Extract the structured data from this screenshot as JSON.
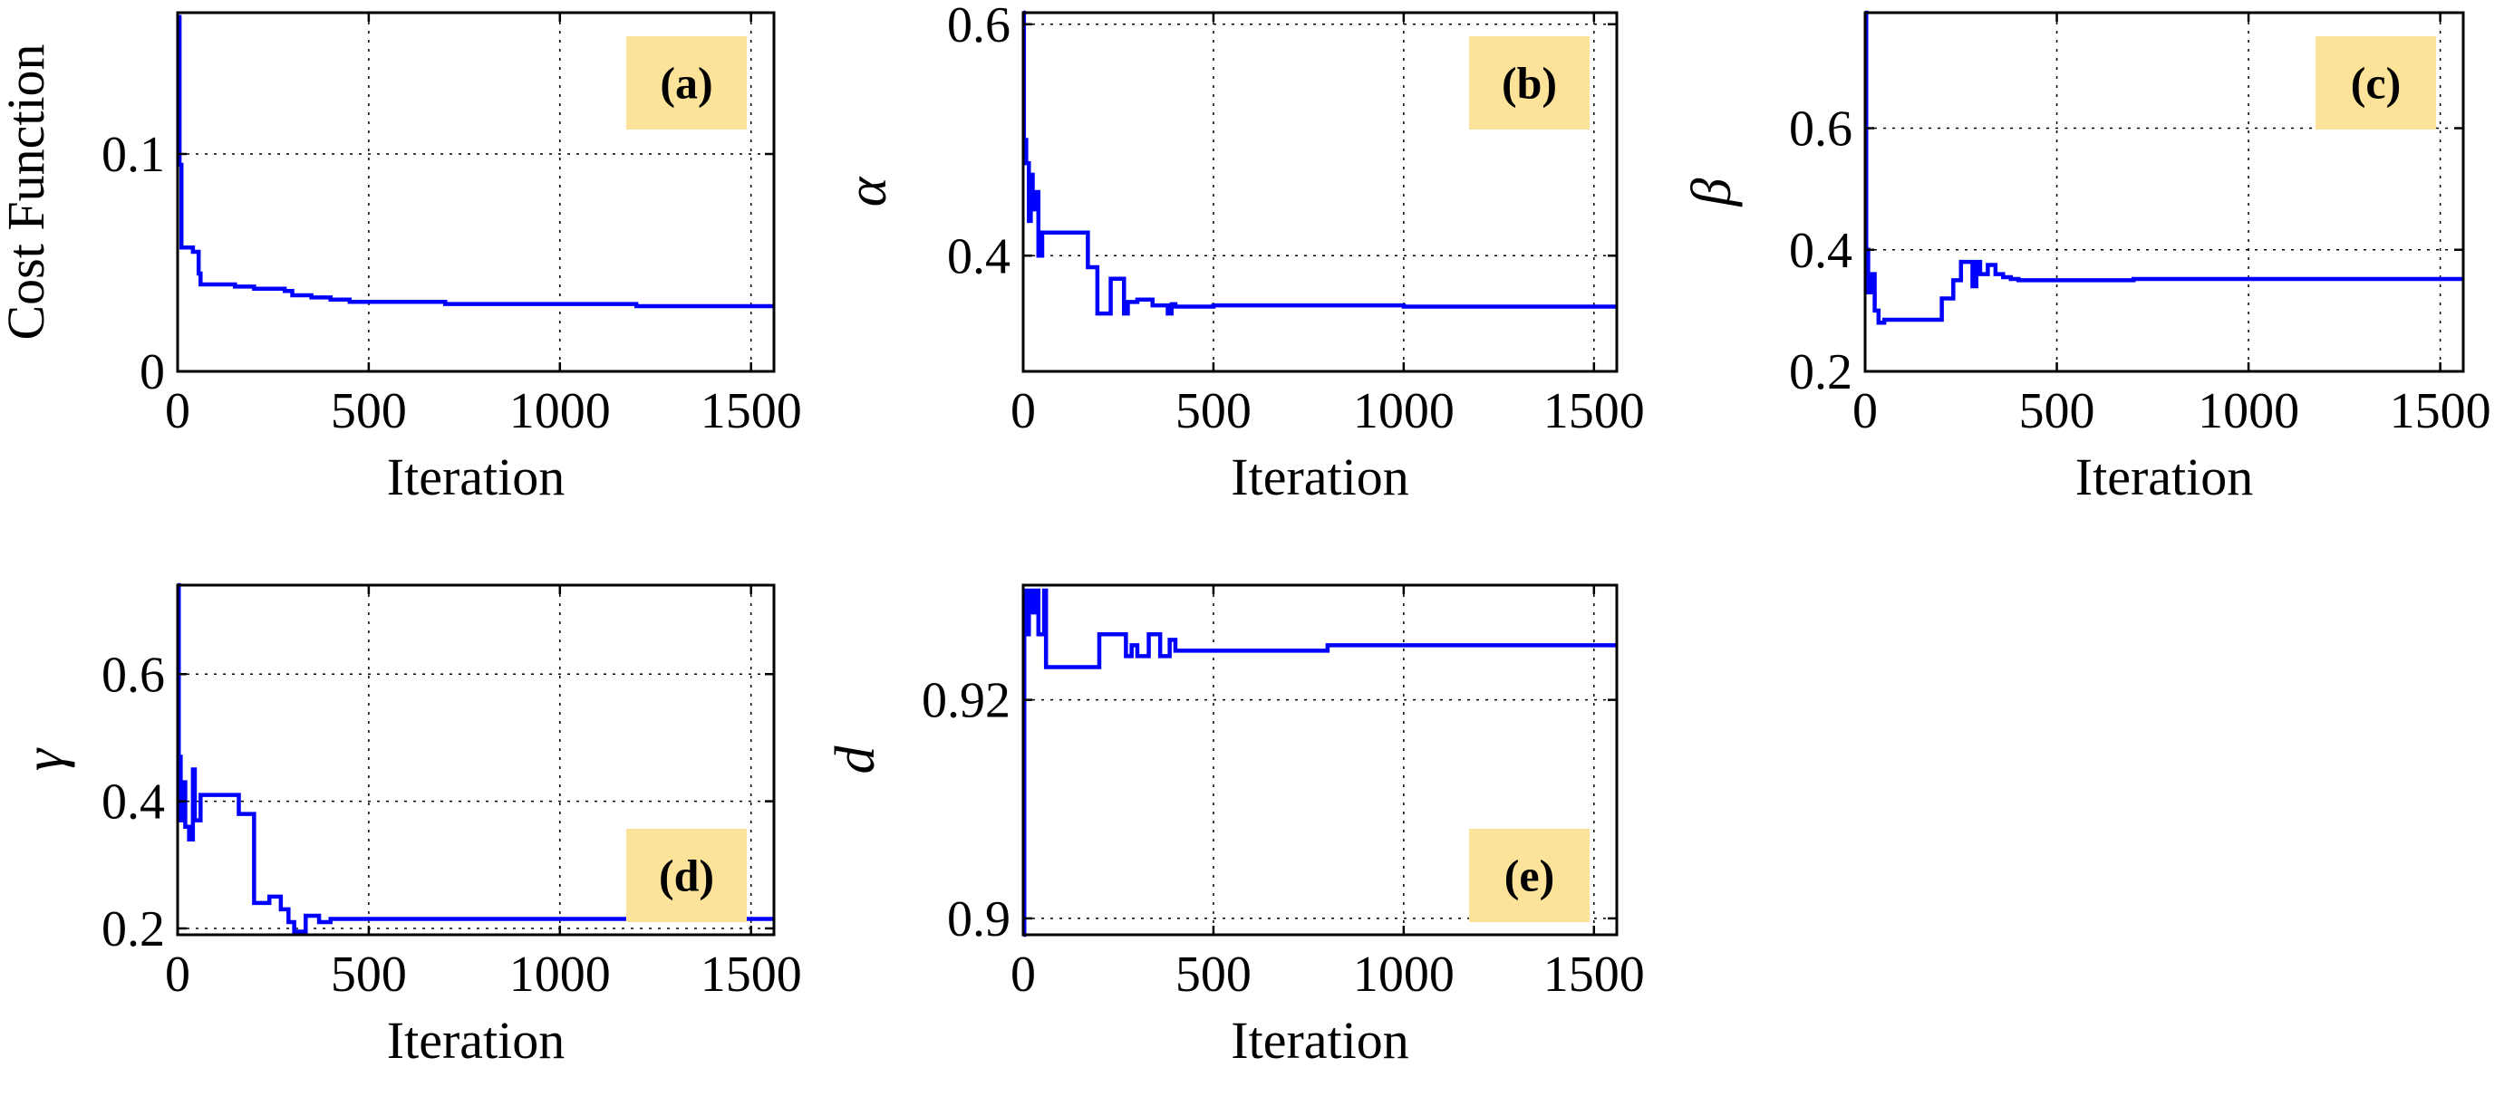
{
  "colors": {
    "series": "#0000ff",
    "label_box": "#fde39a",
    "axes": "#000000"
  },
  "chart_data": [
    {
      "type": "line",
      "panel": "(a)",
      "title": "",
      "xlabel": "Iteration",
      "ylabel": "Cost Function",
      "xlim": [
        0,
        1560
      ],
      "ylim": [
        0,
        0.165
      ],
      "xticks": [
        0,
        500,
        1000,
        1500
      ],
      "xtick_labels": [
        "0",
        "500",
        "1000",
        "1500"
      ],
      "yticks": [
        0,
        0.1
      ],
      "ytick_labels": [
        "0",
        "0.1"
      ],
      "grid": true,
      "label_position": "top-right",
      "series": [
        {
          "name": "Cost Function",
          "step": true,
          "x": [
            0,
            5,
            10,
            40,
            55,
            60,
            150,
            200,
            280,
            300,
            350,
            400,
            450,
            550,
            700,
            800,
            1000,
            1200,
            1560
          ],
          "y": [
            0.163,
            0.095,
            0.057,
            0.055,
            0.045,
            0.04,
            0.039,
            0.038,
            0.037,
            0.035,
            0.034,
            0.033,
            0.032,
            0.032,
            0.031,
            0.031,
            0.031,
            0.03,
            0.03
          ]
        }
      ]
    },
    {
      "type": "line",
      "panel": "(b)",
      "title": "",
      "xlabel": "Iteration",
      "ylabel": "α",
      "xlim": [
        0,
        1560
      ],
      "ylim": [
        0.3,
        0.61
      ],
      "xticks": [
        0,
        500,
        1000,
        1500
      ],
      "xtick_labels": [
        "0",
        "500",
        "1000",
        "1500"
      ],
      "yticks": [
        0.4,
        0.6
      ],
      "ytick_labels": [
        "0.4",
        "0.6"
      ],
      "grid": true,
      "label_position": "top-right",
      "series": [
        {
          "name": "α",
          "step": true,
          "x": [
            0,
            2,
            8,
            15,
            20,
            25,
            30,
            40,
            50,
            70,
            170,
            195,
            230,
            265,
            275,
            300,
            340,
            380,
            390,
            400,
            500,
            1000,
            1560
          ],
          "y": [
            0.61,
            0.5,
            0.48,
            0.43,
            0.47,
            0.44,
            0.455,
            0.4,
            0.42,
            0.42,
            0.39,
            0.35,
            0.38,
            0.35,
            0.36,
            0.362,
            0.357,
            0.35,
            0.358,
            0.356,
            0.357,
            0.356,
            0.356
          ]
        }
      ]
    },
    {
      "type": "line",
      "panel": "(c)",
      "title": "",
      "xlabel": "Iteration",
      "ylabel": "β",
      "xlim": [
        0,
        1560
      ],
      "ylim": [
        0.2,
        0.79
      ],
      "xticks": [
        0,
        500,
        1000,
        1500
      ],
      "xtick_labels": [
        "0",
        "500",
        "1000",
        "1500"
      ],
      "yticks": [
        0.2,
        0.4,
        0.6
      ],
      "ytick_labels": [
        "0.2",
        "0.4",
        "0.6"
      ],
      "grid": true,
      "label_position": "top-right",
      "series": [
        {
          "name": "β",
          "step": true,
          "x": [
            0,
            3,
            8,
            15,
            25,
            35,
            50,
            200,
            230,
            250,
            280,
            290,
            300,
            320,
            340,
            360,
            380,
            400,
            700,
            1560
          ],
          "y": [
            0.79,
            0.4,
            0.33,
            0.36,
            0.3,
            0.28,
            0.285,
            0.32,
            0.35,
            0.38,
            0.34,
            0.38,
            0.36,
            0.375,
            0.36,
            0.355,
            0.352,
            0.35,
            0.352,
            0.352
          ]
        }
      ]
    },
    {
      "type": "line",
      "panel": "(d)",
      "title": "",
      "xlabel": "Iteration",
      "ylabel": "γ",
      "xlim": [
        0,
        1560
      ],
      "ylim": [
        0.19,
        0.74
      ],
      "xticks": [
        0,
        500,
        1000,
        1500
      ],
      "xtick_labels": [
        "0",
        "500",
        "1000",
        "1500"
      ],
      "yticks": [
        0.2,
        0.4,
        0.6
      ],
      "ytick_labels": [
        "0.2",
        "0.4",
        "0.6"
      ],
      "grid": true,
      "label_position": "bottom-right",
      "series": [
        {
          "name": "γ",
          "step": true,
          "x": [
            0,
            3,
            8,
            15,
            20,
            30,
            40,
            45,
            60,
            160,
            200,
            240,
            270,
            290,
            305,
            335,
            370,
            400,
            1560
          ],
          "y": [
            0.74,
            0.47,
            0.37,
            0.43,
            0.36,
            0.34,
            0.45,
            0.37,
            0.41,
            0.38,
            0.24,
            0.25,
            0.23,
            0.21,
            0.195,
            0.22,
            0.21,
            0.215,
            0.215
          ]
        }
      ]
    },
    {
      "type": "line",
      "panel": "(e)",
      "title": "",
      "xlabel": "Iteration",
      "ylabel": "d",
      "xlim": [
        0,
        1560
      ],
      "ylim": [
        0.8985,
        0.9305
      ],
      "xticks": [
        0,
        500,
        1000,
        1500
      ],
      "xtick_labels": [
        "0",
        "500",
        "1000",
        "1500"
      ],
      "yticks": [
        0.9,
        0.92
      ],
      "ytick_labels": [
        "0.9",
        "0.92"
      ],
      "grid": true,
      "label_position": "bottom-right",
      "series": [
        {
          "name": "d",
          "step": true,
          "x": [
            0,
            3,
            8,
            15,
            22,
            30,
            40,
            55,
            60,
            200,
            230,
            270,
            285,
            300,
            330,
            360,
            385,
            400,
            800,
            1560
          ],
          "y": [
            0.8985,
            0.93,
            0.926,
            0.93,
            0.928,
            0.93,
            0.926,
            0.93,
            0.923,
            0.926,
            0.926,
            0.924,
            0.925,
            0.924,
            0.926,
            0.924,
            0.9255,
            0.9245,
            0.925,
            0.925
          ]
        }
      ]
    }
  ]
}
